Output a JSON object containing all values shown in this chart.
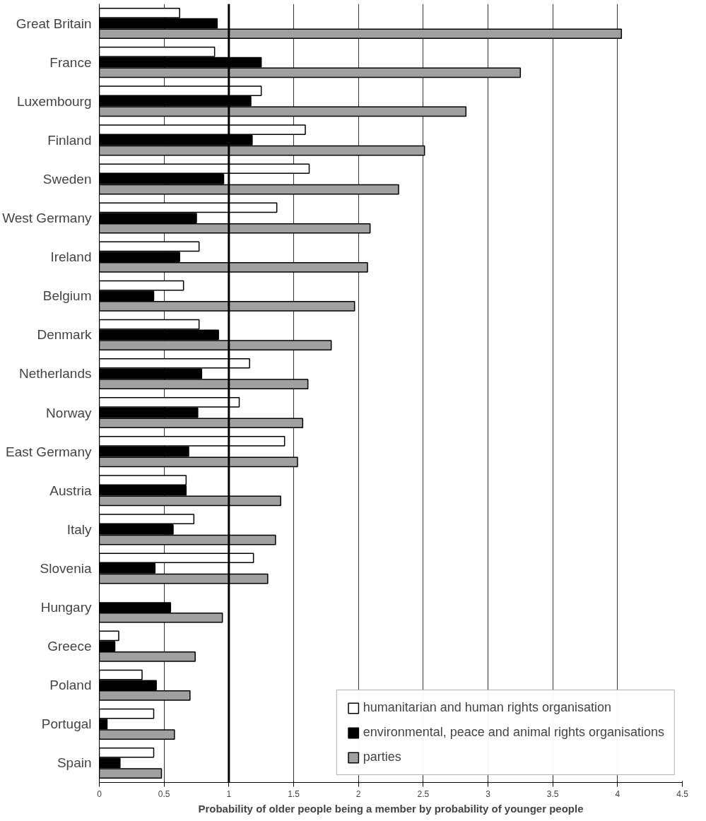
{
  "chart_data": {
    "type": "bar",
    "orientation": "horizontal",
    "xlabel": "Probability of older people being a member by probability of younger people",
    "categories": [
      "Great Britain",
      "France",
      "Luxembourg",
      "Finland",
      "Sweden",
      "West Germany",
      "Ireland",
      "Belgium",
      "Denmark",
      "Netherlands",
      "Norway",
      "East Germany",
      "Austria",
      "Italy",
      "Slovenia",
      "Hungary",
      "Greece",
      "Poland",
      "Portugal",
      "Spain"
    ],
    "series": [
      {
        "name": "humanitarian and human rights organisation",
        "color": "#ffffff",
        "values": [
          0.62,
          0.89,
          1.25,
          1.59,
          1.62,
          1.37,
          0.77,
          0.65,
          0.77,
          1.16,
          1.08,
          1.43,
          0.67,
          0.73,
          1.19,
          null,
          0.15,
          0.33,
          0.42,
          0.42
        ]
      },
      {
        "name": "environmental, peace and animal rights organisations",
        "color": "#000000",
        "values": [
          0.91,
          1.25,
          1.17,
          1.18,
          0.96,
          0.75,
          0.62,
          0.42,
          0.92,
          0.79,
          0.76,
          0.69,
          0.67,
          0.57,
          0.43,
          0.55,
          0.12,
          0.44,
          0.06,
          0.16
        ]
      },
      {
        "name": "parties",
        "color": "#a0a0a0",
        "values": [
          4.03,
          3.25,
          2.83,
          2.51,
          2.31,
          2.09,
          2.07,
          1.97,
          1.79,
          1.61,
          1.57,
          1.53,
          1.4,
          1.36,
          1.3,
          0.95,
          0.74,
          0.7,
          0.58,
          0.48
        ]
      }
    ],
    "xlim": [
      0,
      4.5
    ],
    "xticks": [
      0,
      0.5,
      1,
      1.5,
      2,
      2.5,
      3,
      3.5,
      4,
      4.5
    ],
    "ref_lines": [
      {
        "axis": "x",
        "value": 1,
        "color": "#000000"
      }
    ],
    "grid": "x",
    "legend": "bottom right"
  }
}
